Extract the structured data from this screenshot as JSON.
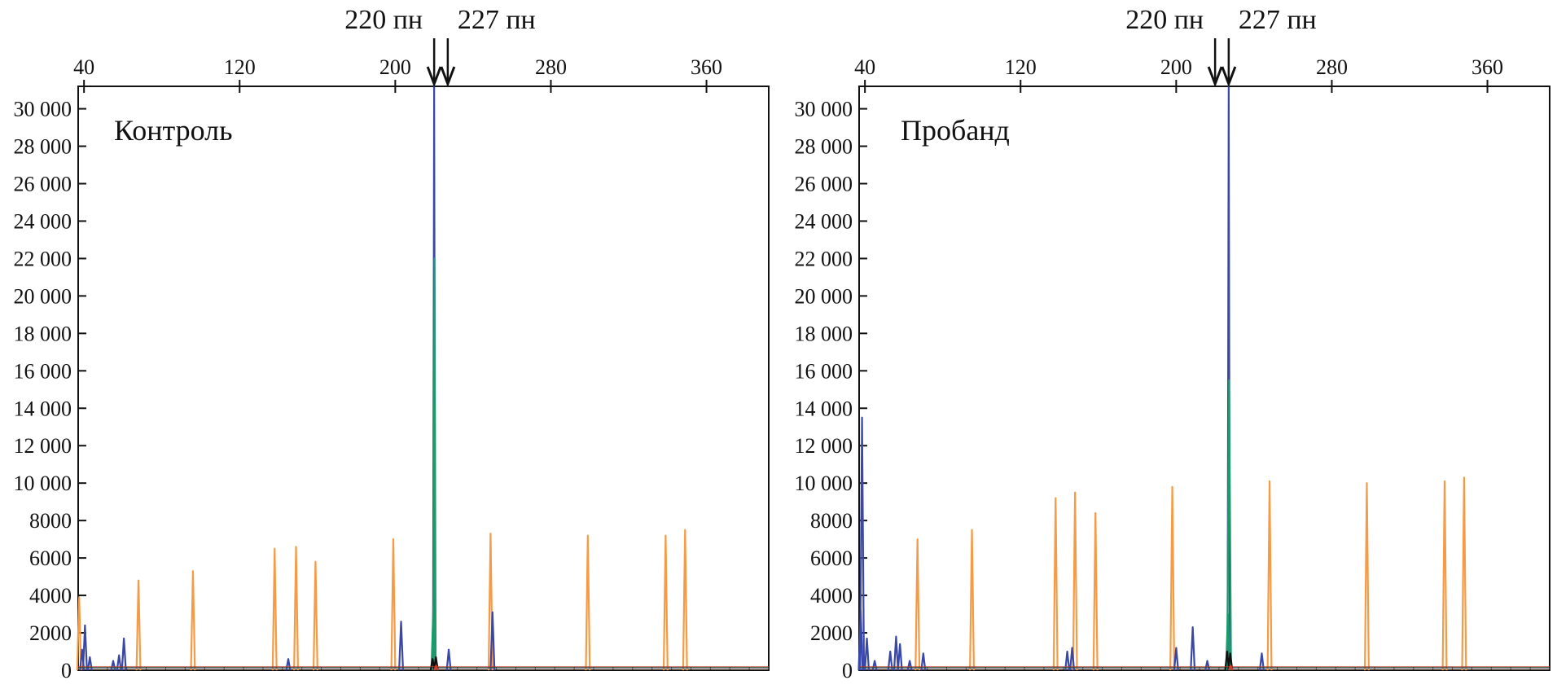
{
  "chart_data": [
    {
      "type": "line",
      "title": "Контроль",
      "xlabel": "",
      "ylabel": "",
      "xlim": [
        37,
        392
      ],
      "ylim": [
        0,
        31200
      ],
      "x_ticks": [
        40,
        120,
        200,
        280,
        360
      ],
      "x_tick_labels": [
        "40",
        "120",
        "200",
        "280",
        "360"
      ],
      "y_ticks": [
        0,
        2000,
        4000,
        6000,
        8000,
        10000,
        12000,
        14000,
        16000,
        18000,
        20000,
        22000,
        24000,
        26000,
        28000,
        30000
      ],
      "y_tick_labels": [
        "0",
        "2000",
        "4000",
        "6000",
        "8000",
        "10 000",
        "12 000",
        "14 000",
        "16 000",
        "18 000",
        "20 000",
        "22 000",
        "24 000",
        "26 000",
        "28 000",
        "30 000"
      ],
      "grid": false,
      "markers": [
        {
          "label": "220 пн",
          "x": 220
        },
        {
          "label": "227 пн",
          "x": 227
        }
      ],
      "series": [
        {
          "color": "#f59a45",
          "peaks": [
            {
              "x": 37.5,
              "y": 3900
            },
            {
              "x": 68,
              "y": 4800
            },
            {
              "x": 96,
              "y": 5300
            },
            {
              "x": 138,
              "y": 6500
            },
            {
              "x": 149,
              "y": 6600
            },
            {
              "x": 159,
              "y": 5800
            },
            {
              "x": 199,
              "y": 7000
            },
            {
              "x": 249,
              "y": 7300
            },
            {
              "x": 299,
              "y": 7200
            },
            {
              "x": 339,
              "y": 7200
            },
            {
              "x": 349,
              "y": 7500
            }
          ]
        },
        {
          "color": "#3847a8",
          "peaks": [
            {
              "x": 39,
              "y": 1100
            },
            {
              "x": 40.5,
              "y": 2400
            },
            {
              "x": 43,
              "y": 700
            },
            {
              "x": 55,
              "y": 500
            },
            {
              "x": 58,
              "y": 800
            },
            {
              "x": 60.5,
              "y": 1700
            },
            {
              "x": 145,
              "y": 600
            },
            {
              "x": 203,
              "y": 2600
            },
            {
              "x": 220,
              "y": 31200
            },
            {
              "x": 227.5,
              "y": 1100
            },
            {
              "x": 250,
              "y": 3100
            }
          ]
        },
        {
          "color": "#1d9a6c",
          "peaks": [
            {
              "x": 219.6,
              "y": 3400
            },
            {
              "x": 220.2,
              "y": 22000
            }
          ]
        },
        {
          "color": "#111111",
          "peaks": [
            {
              "x": 219.2,
              "y": 600
            },
            {
              "x": 220.9,
              "y": 700
            }
          ]
        },
        {
          "color": "#d23a2a",
          "peaks": [
            {
              "x": 221,
              "y": 250
            }
          ]
        }
      ]
    },
    {
      "type": "line",
      "title": "Пробанд",
      "xlabel": "",
      "ylabel": "",
      "xlim": [
        37,
        392
      ],
      "ylim": [
        0,
        31200
      ],
      "x_ticks": [
        40,
        120,
        200,
        280,
        360
      ],
      "x_tick_labels": [
        "40",
        "120",
        "200",
        "280",
        "360"
      ],
      "y_ticks": [
        0,
        2000,
        4000,
        6000,
        8000,
        10000,
        12000,
        14000,
        16000,
        18000,
        20000,
        22000,
        24000,
        26000,
        28000,
        30000
      ],
      "y_tick_labels": [
        "0",
        "2000",
        "4000",
        "6000",
        "8000",
        "10 000",
        "12 000",
        "14 000",
        "16 000",
        "18 000",
        "20 000",
        "22 000",
        "24 000",
        "26 000",
        "28 000",
        "30 000"
      ],
      "grid": false,
      "markers": [
        {
          "label": "220 пн",
          "x": 220
        },
        {
          "label": "227 пн",
          "x": 227
        }
      ],
      "series": [
        {
          "color": "#f59a45",
          "peaks": [
            {
              "x": 67,
              "y": 7000
            },
            {
              "x": 95,
              "y": 7500
            },
            {
              "x": 138,
              "y": 9200
            },
            {
              "x": 148,
              "y": 9500
            },
            {
              "x": 158.5,
              "y": 8400
            },
            {
              "x": 198,
              "y": 9800
            },
            {
              "x": 248,
              "y": 10100
            },
            {
              "x": 298,
              "y": 10000
            },
            {
              "x": 338,
              "y": 10100
            },
            {
              "x": 348,
              "y": 10300
            }
          ]
        },
        {
          "color": "#3847a8",
          "peaks": [
            {
              "x": 37.8,
              "y": 3200
            },
            {
              "x": 38.5,
              "y": 13500
            },
            {
              "x": 41,
              "y": 1700
            },
            {
              "x": 45,
              "y": 500
            },
            {
              "x": 53,
              "y": 1000
            },
            {
              "x": 56,
              "y": 1800
            },
            {
              "x": 58,
              "y": 1400
            },
            {
              "x": 63,
              "y": 500
            },
            {
              "x": 70,
              "y": 900
            },
            {
              "x": 144,
              "y": 1000
            },
            {
              "x": 146.5,
              "y": 1200
            },
            {
              "x": 200,
              "y": 1200
            },
            {
              "x": 208.5,
              "y": 2300
            },
            {
              "x": 216,
              "y": 500
            },
            {
              "x": 227,
              "y": 31200
            },
            {
              "x": 244,
              "y": 900
            }
          ]
        },
        {
          "color": "#1d9a6c",
          "peaks": [
            {
              "x": 226.6,
              "y": 3000
            },
            {
              "x": 227.2,
              "y": 15500
            }
          ]
        },
        {
          "color": "#111111",
          "peaks": [
            {
              "x": 226.2,
              "y": 1000
            },
            {
              "x": 227.8,
              "y": 900
            }
          ]
        },
        {
          "color": "#d23a2a",
          "peaks": [
            {
              "x": 228,
              "y": 250
            }
          ]
        }
      ]
    }
  ]
}
